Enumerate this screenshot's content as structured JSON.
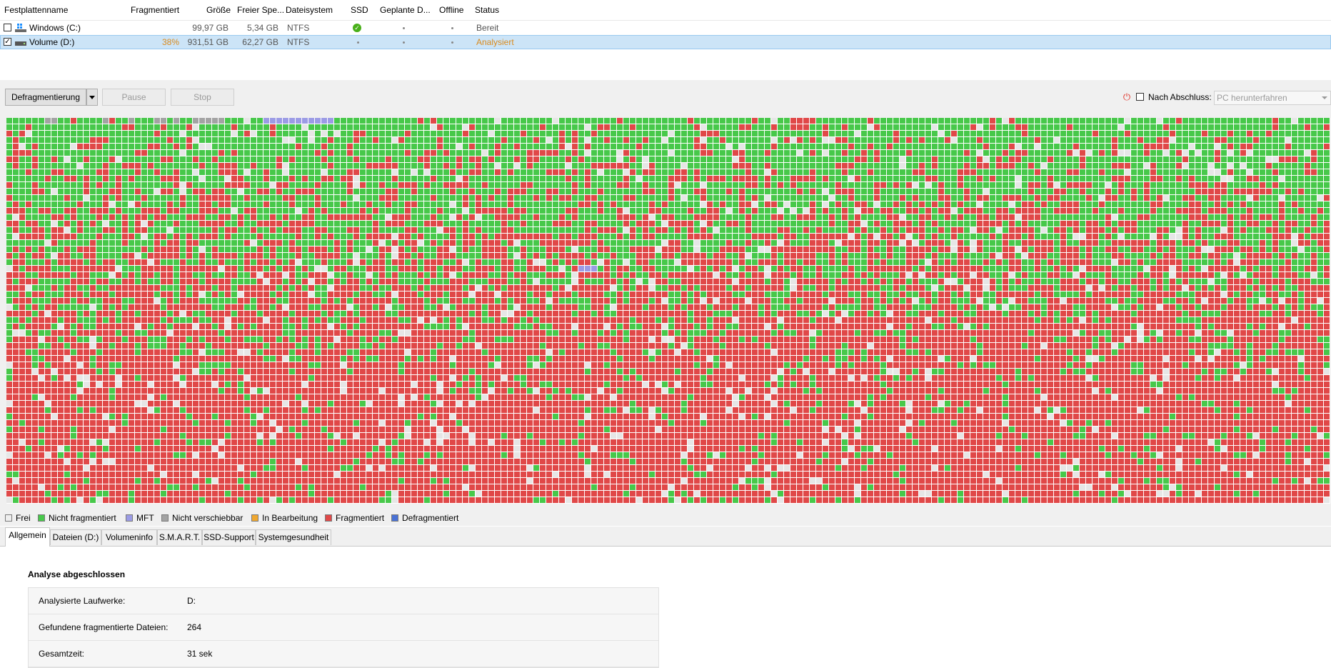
{
  "columns": {
    "name": "Festplattenname",
    "fragmented": "Fragmentiert",
    "size": "Größe",
    "free": "Freier Spe...",
    "fs": "Dateisystem",
    "ssd": "SSD",
    "scheduled": "Geplante D...",
    "offline": "Offline",
    "status": "Status"
  },
  "drives": [
    {
      "name": "Windows (C:)",
      "checked": false,
      "fragmented": "",
      "size": "99,97 GB",
      "free": "5,34 GB",
      "fs": "NTFS",
      "ssd": "check-icon",
      "status": "Bereit"
    },
    {
      "name": "Volume (D:)",
      "checked": true,
      "fragmented": "38%",
      "size": "931,51 GB",
      "free": "62,27 GB",
      "fs": "NTFS",
      "ssd": "dot",
      "status": "Analysiert"
    }
  ],
  "toolbar": {
    "defrag_label": "Defragmentierung",
    "pause_label": "Pause",
    "stop_label": "Stop",
    "after_finish_label": "Nach Abschluss:",
    "after_finish_value": "PC herunterfahren"
  },
  "map": {
    "fragmented_ratio": 0.38,
    "colors": {
      "free": "#e6e6e6",
      "not_fragmented": "#47c84a",
      "mft": "#9b9be5",
      "unmovable": "#a3a3a3",
      "in_progress": "#f0a830",
      "fragmented": "#e04848",
      "defragmented": "#4a72d6"
    }
  },
  "legend": [
    {
      "label": "Frei",
      "color": "#eeeeee"
    },
    {
      "label": "Nicht fragmentiert",
      "color": "#47c84a"
    },
    {
      "label": "MFT",
      "color": "#9b9be5"
    },
    {
      "label": "Nicht verschiebbar",
      "color": "#a3a3a3"
    },
    {
      "label": "In Bearbeitung",
      "color": "#f0a830"
    },
    {
      "label": "Fragmentiert",
      "color": "#e04848"
    },
    {
      "label": "Defragmentiert",
      "color": "#4a72d6"
    }
  ],
  "tabs": [
    "Allgemein",
    "Dateien (D:)",
    "Volumeninfo",
    "S.M.A.R.T.",
    "SSD-Support",
    "Systemgesundheit"
  ],
  "summary": {
    "title": "Analyse abgeschlossen",
    "rows": [
      {
        "label": "Analysierte Laufwerke:",
        "value": "D:"
      },
      {
        "label": "Gefundene fragmentierte Dateien:",
        "value": "264"
      },
      {
        "label": "Gesamtzeit:",
        "value": "31 sek"
      }
    ]
  }
}
